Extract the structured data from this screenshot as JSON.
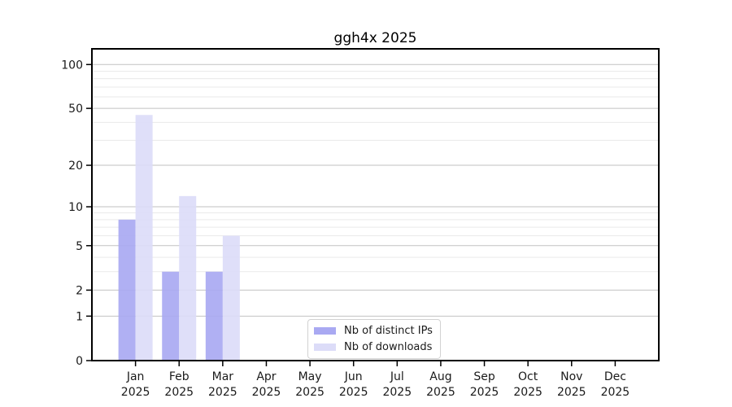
{
  "chart_data": {
    "type": "bar",
    "title": "ggh4x 2025",
    "categories": [
      {
        "month": "Jan",
        "year": "2025"
      },
      {
        "month": "Feb",
        "year": "2025"
      },
      {
        "month": "Mar",
        "year": "2025"
      },
      {
        "month": "Apr",
        "year": "2025"
      },
      {
        "month": "May",
        "year": "2025"
      },
      {
        "month": "Jun",
        "year": "2025"
      },
      {
        "month": "Jul",
        "year": "2025"
      },
      {
        "month": "Aug",
        "year": "2025"
      },
      {
        "month": "Sep",
        "year": "2025"
      },
      {
        "month": "Oct",
        "year": "2025"
      },
      {
        "month": "Nov",
        "year": "2025"
      },
      {
        "month": "Dec",
        "year": "2025"
      }
    ],
    "series": [
      {
        "name": "Nb of distinct IPs",
        "color": "#a9a9f2",
        "values": [
          8,
          3,
          3,
          0,
          0,
          0,
          0,
          0,
          0,
          0,
          0,
          0
        ]
      },
      {
        "name": "Nb of downloads",
        "color": "#dcdcf8",
        "values": [
          45,
          12,
          6,
          0,
          0,
          0,
          0,
          0,
          0,
          0,
          0,
          0
        ]
      }
    ],
    "xlabel": "",
    "ylabel": "",
    "yscale": "symlog",
    "ylim": [
      0,
      128
    ],
    "yticks": [
      0,
      1,
      2,
      5,
      10,
      20,
      50,
      100
    ],
    "minor_yticks": [
      3,
      4,
      6,
      7,
      8,
      9,
      30,
      40,
      60,
      70,
      80,
      90
    ],
    "grid": true,
    "legend_position": "inside-bottom-center",
    "axis_color": "#000000",
    "text_color": "#1a1a1a",
    "grid_major_color": "#c2c2c2",
    "grid_minor_color": "#eaeaea"
  }
}
